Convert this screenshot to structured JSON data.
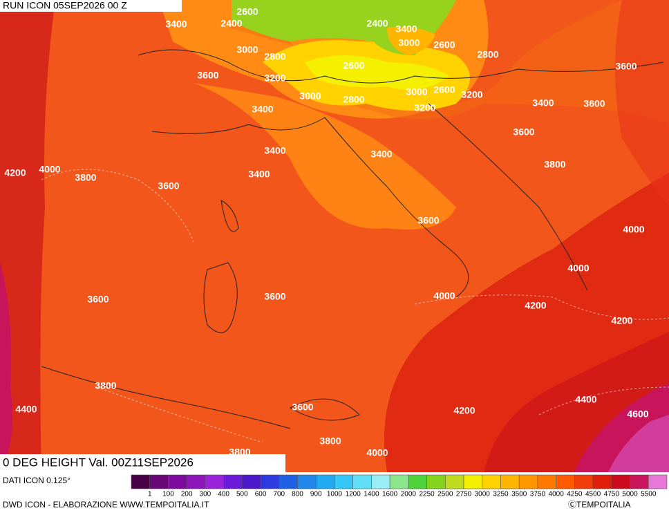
{
  "header": {
    "run": "RUN ICON 05SEP2026 00 Z"
  },
  "map": {
    "title": "0 DEG HEIGHT Val. 00Z11SEP2026",
    "contour_labels": [
      "2600",
      "2400",
      "3400",
      "2400",
      "3400",
      "3000",
      "2800",
      "3000",
      "2600",
      "2800",
      "3600",
      "2600",
      "3200",
      "3600",
      "3000",
      "2800",
      "3000",
      "2600",
      "3200",
      "3200",
      "3400",
      "3600",
      "3400",
      "3600",
      "3400",
      "3400",
      "3800",
      "4200",
      "4000",
      "3800",
      "3600",
      "3400",
      "3600",
      "4000",
      "4000",
      "3600",
      "3600",
      "4000",
      "4200",
      "4200",
      "3800",
      "4400",
      "4400",
      "3600",
      "4200",
      "4600",
      "3800",
      "3800",
      "4000"
    ]
  },
  "legend": {
    "source": "DATI ICON 0.125°",
    "labels": [
      "1",
      "100",
      "200",
      "300",
      "400",
      "500",
      "600",
      "700",
      "800",
      "900",
      "1000",
      "1200",
      "1400",
      "1600",
      "2000",
      "2250",
      "2500",
      "2750",
      "3000",
      "3250",
      "3500",
      "3750",
      "4000",
      "4250",
      "4500",
      "4750",
      "5000",
      "5500"
    ],
    "colors": [
      "#4a0046",
      "#6a0878",
      "#7c0a9c",
      "#8e14bc",
      "#9a22d8",
      "#6a1ad8",
      "#4a18c8",
      "#2c3ae0",
      "#2060e4",
      "#2088ec",
      "#20a8f2",
      "#34c8f8",
      "#60def8",
      "#98eef4",
      "#8ce68c",
      "#50d23c",
      "#82d21e",
      "#c0dc1e",
      "#f4f000",
      "#ffd200",
      "#ffb400",
      "#ff9600",
      "#ff7800",
      "#ff5a00",
      "#f03c0a",
      "#e01e0a",
      "#cc0a1e",
      "#c8145a",
      "#e878d8"
    ]
  },
  "footer": {
    "credit": "DWD ICON - ELABORAZIONE WWW.TEMPOITALIA.IT",
    "copyright": "ⒸTEMPOITALIA"
  }
}
